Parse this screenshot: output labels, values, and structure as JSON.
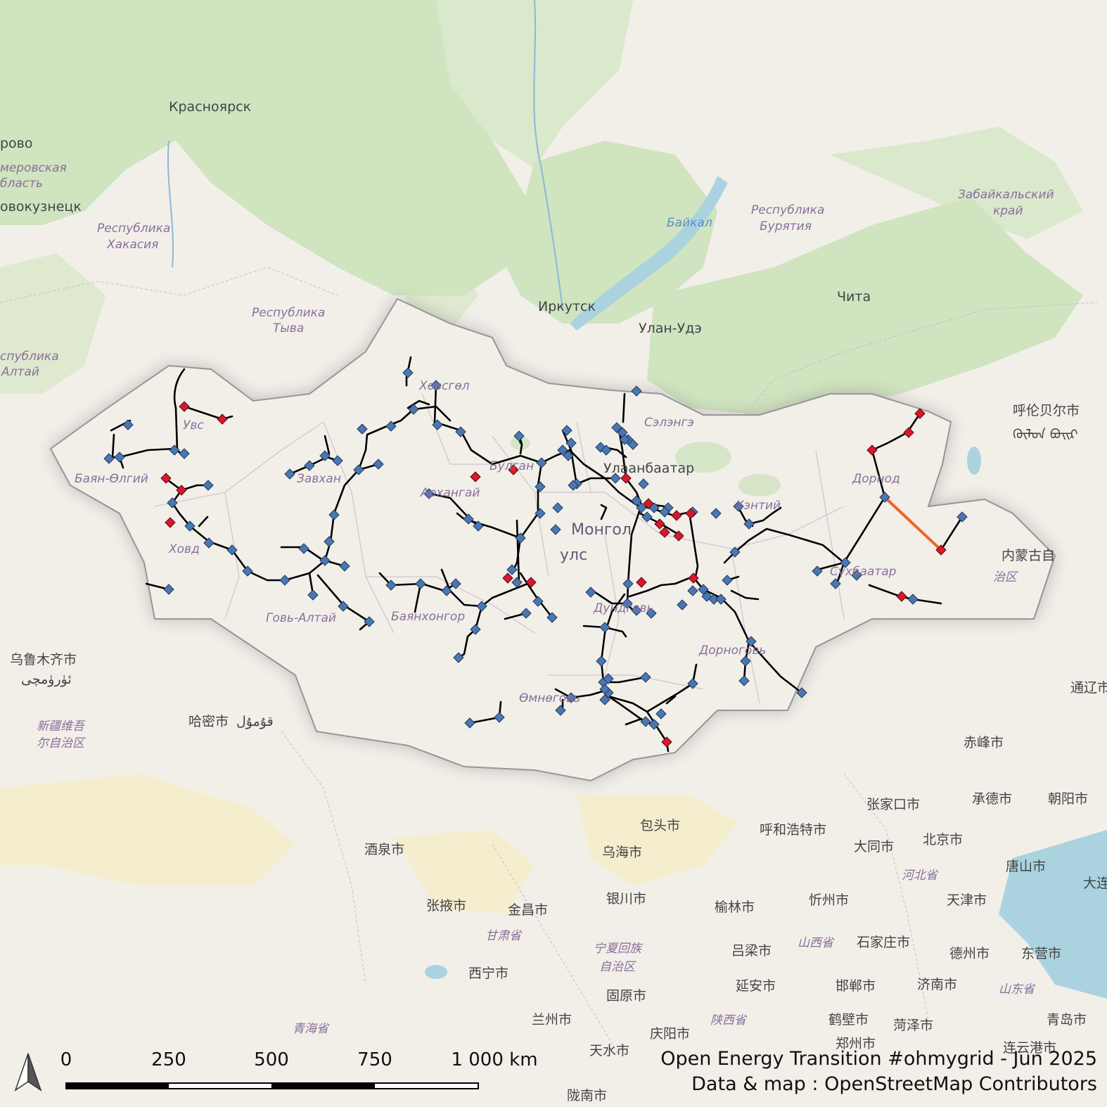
{
  "credits": {
    "title": "Open Energy Transition #ohmygrid - Jun 2025",
    "attribution": "Data & map : OpenStreetMap Contributors"
  },
  "scale_bar": {
    "labels": [
      "0",
      "250",
      "500",
      "750",
      "1 000 km"
    ]
  },
  "north_arrow": {
    "icon": "north-arrow-icon"
  },
  "labels": {
    "krasnoyarsk": "Красноярск",
    "kemerovo": "рово",
    "kemerovo_obl": "меровская",
    "kemerovo_obl2": "бласть",
    "novokuznetsk": "овокузнецк",
    "khakasia": "Республика",
    "khakasia2": "Хакасия",
    "tyva": "Республика",
    "tyva2": "Тыва",
    "altai": "спублика",
    "altai2": "Алтай",
    "irkutsk": "Иркутск",
    "baikal": "Байкал",
    "buryatia": "Республика",
    "buryatia2": "Бурятия",
    "ulan_ude": "Улан-Удэ",
    "chita": "Чита",
    "zabaikal": "Забайкальский",
    "zabaikal2": "край",
    "hulunbuir": "呼伦贝尔市",
    "hulunbuir_mn": "ᠬᠥᠯᠦᠨ ᠪᠤᠢᠷ",
    "khovsgol": "Хөвсгөл",
    "selenge": "Сэлэнгэ",
    "ulaanbaatar": "Улаанбаатар",
    "bulgan": "Булган",
    "arkhangai": "Архангай",
    "zavkhan": "Завхан",
    "uvs": "Увс",
    "bayan_olgii": "Баян-Өлгий",
    "khovd": "Ховд",
    "gobi_altai": "Говь-Алтай",
    "bayankhongor": "Баянхонгор",
    "mongolia1": "Монгол",
    "mongolia2": "улс",
    "khentii": "Хэнтий",
    "dornod": "Дорнод",
    "sukhbaatar": "Сүхбаатар",
    "dornogovi": "Дорноговь",
    "dundgovi": "Дундговь",
    "omnogovi": "Өмнөговь",
    "inner_mongolia": "内蒙古自",
    "inner_mongolia2": "治区",
    "urumqi": "乌鲁木齐市",
    "urumqi_ug": "ئۈرۈمچى",
    "xinjiang": "新疆维吾",
    "xinjiang2": "尔自治区",
    "hami": "哈密市",
    "hami_ug": "قۇمۇل",
    "jiuquan": "酒泉市",
    "zhangye": "张掖市",
    "jinchang": "金昌市",
    "gansu": "甘肃省",
    "yinchuan": "银川市",
    "wuhai": "乌海市",
    "baotou": "包头市",
    "hohhot": "呼和浩特市",
    "datong": "大同市",
    "zhangjiakou": "张家口市",
    "beijing": "北京市",
    "chengde": "承德市",
    "chaoyang": "朝阳市",
    "chifeng": "赤峰市",
    "tongliao": "通辽市",
    "tangshan": "唐山市",
    "tianjin": "天津市",
    "hebei": "河北省",
    "xinzhou": "忻州市",
    "yulin": "榆林市",
    "shijiazhuang": "石家庄市",
    "shanxi": "山西省",
    "lvliang": "吕梁市",
    "dezhou": "德州市",
    "dongying": "东营市",
    "ningxia": "宁夏回族",
    "ningxia2": "自治区",
    "xining": "西宁市",
    "guyuan": "固原市",
    "yanan": "延安市",
    "handan": "邯郸市",
    "jinan": "济南市",
    "shandong": "山东省",
    "lanzhou": "兰州市",
    "qinghai": "青海省",
    "qingyang": "庆阳市",
    "shaanxi": "陕西省",
    "hebi": "鹤壁市",
    "heze": "菏泽市",
    "qingdao": "青岛市",
    "zhengzhou": "郑州市",
    "tianshui": "天水市",
    "lianyungang": "连云港市",
    "longnan": "陇南市",
    "dalian": "大连"
  },
  "legend_colors": {
    "line": "#000000",
    "substation": "#4a77b4",
    "power_plant": "#d7192b",
    "hvdc": "#f06422",
    "border": "#8c8c8c"
  }
}
